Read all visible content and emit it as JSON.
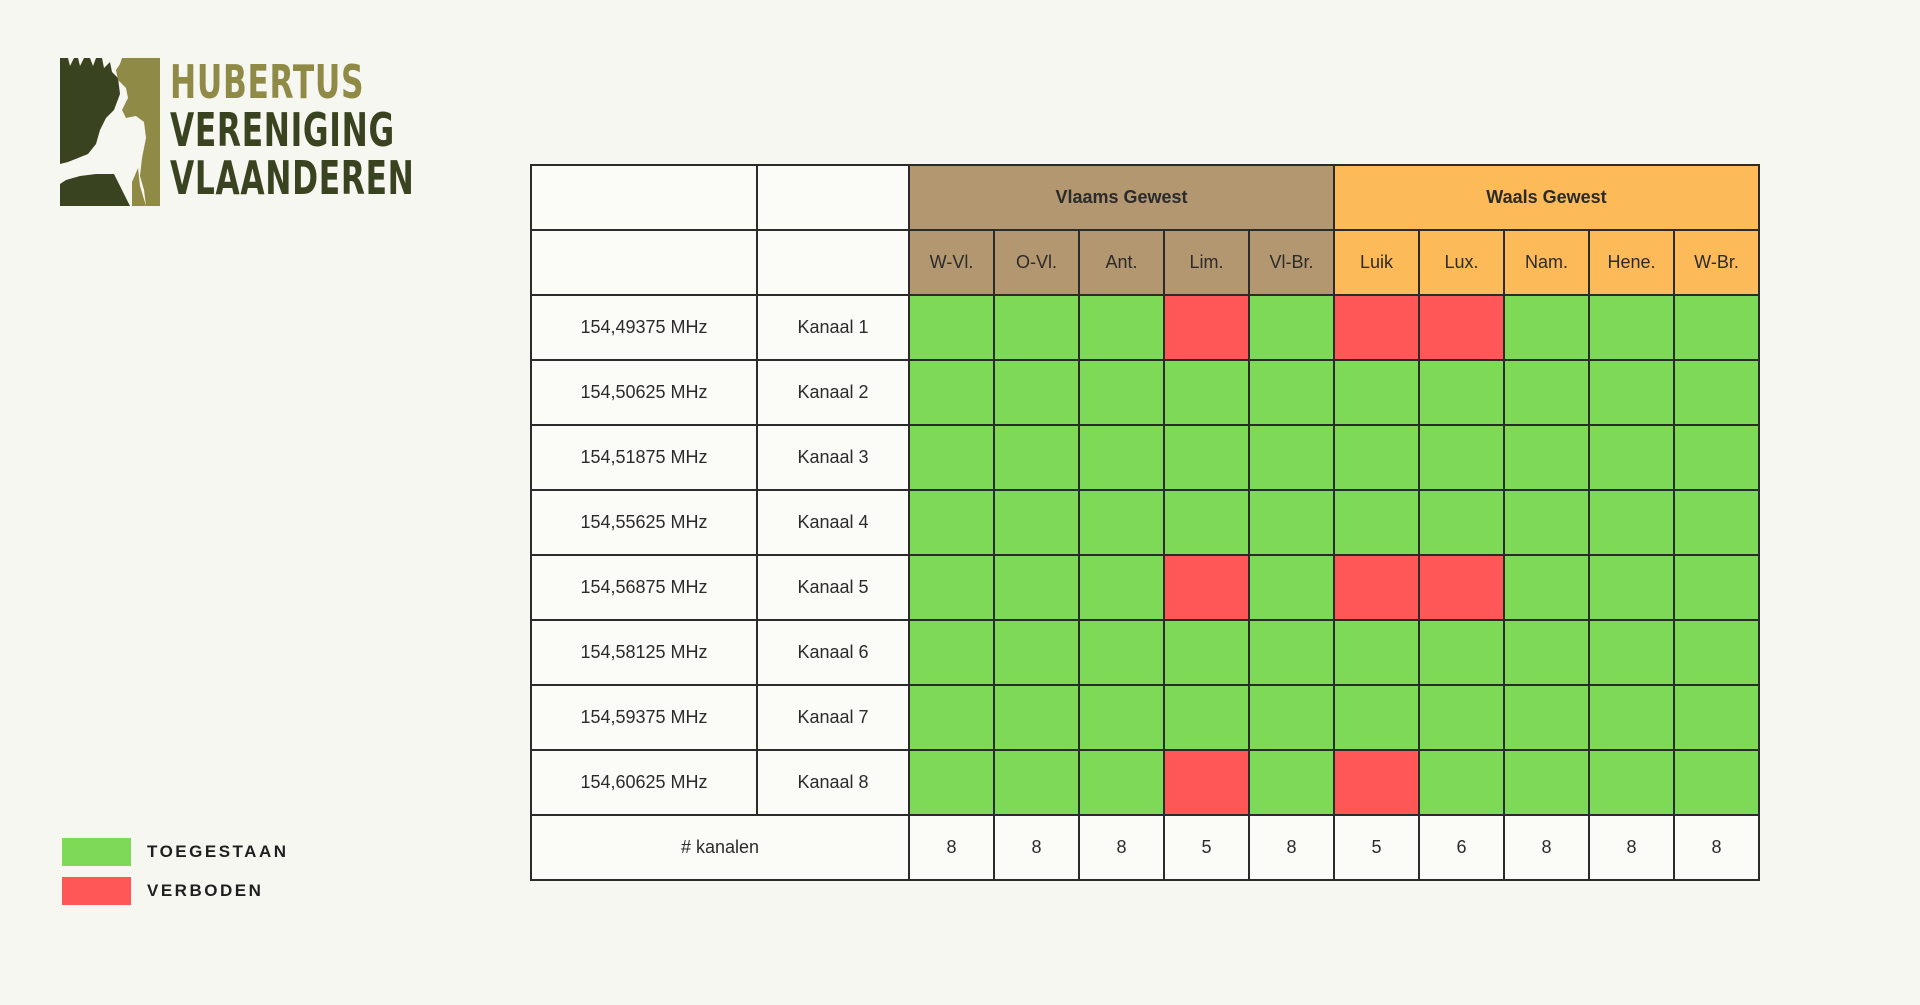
{
  "logo": {
    "line1": "HUBERTUS",
    "line2": "VERENIGING",
    "line3": "VLAANDEREN",
    "colors": {
      "olive": "#8f8a46",
      "dark": "#3a4320"
    }
  },
  "legend": {
    "allowed_label": "TOEGESTAAN",
    "forbidden_label": "VERBODEN"
  },
  "colors": {
    "allowed": "#7ed957",
    "forbidden": "#ff5757",
    "vlaams_header": "#b39770",
    "waals_header": "#fcbb58"
  },
  "chart_data": {
    "type": "table",
    "groups": [
      {
        "name": "Vlaams Gewest",
        "regions": [
          "W-Vl.",
          "O-Vl.",
          "Ant.",
          "Lim.",
          "Vl-Br."
        ]
      },
      {
        "name": "Waals Gewest",
        "regions": [
          "Luik",
          "Lux.",
          "Nam.",
          "Hene.",
          "W-Br."
        ]
      }
    ],
    "regions": [
      "W-Vl.",
      "O-Vl.",
      "Ant.",
      "Lim.",
      "Vl-Br.",
      "Luik",
      "Lux.",
      "Nam.",
      "Hene.",
      "W-Br."
    ],
    "rows": [
      {
        "frequency": "154,49375 MHz",
        "channel": "Kanaal 1",
        "status": [
          "allowed",
          "allowed",
          "allowed",
          "forbidden",
          "allowed",
          "forbidden",
          "forbidden",
          "allowed",
          "allowed",
          "allowed"
        ]
      },
      {
        "frequency": "154,50625 MHz",
        "channel": "Kanaal 2",
        "status": [
          "allowed",
          "allowed",
          "allowed",
          "allowed",
          "allowed",
          "allowed",
          "allowed",
          "allowed",
          "allowed",
          "allowed"
        ]
      },
      {
        "frequency": "154,51875 MHz",
        "channel": "Kanaal 3",
        "status": [
          "allowed",
          "allowed",
          "allowed",
          "allowed",
          "allowed",
          "allowed",
          "allowed",
          "allowed",
          "allowed",
          "allowed"
        ]
      },
      {
        "frequency": "154,55625 MHz",
        "channel": "Kanaal 4",
        "status": [
          "allowed",
          "allowed",
          "allowed",
          "allowed",
          "allowed",
          "allowed",
          "allowed",
          "allowed",
          "allowed",
          "allowed"
        ]
      },
      {
        "frequency": "154,56875 MHz",
        "channel": "Kanaal 5",
        "status": [
          "allowed",
          "allowed",
          "allowed",
          "forbidden",
          "allowed",
          "forbidden",
          "forbidden",
          "allowed",
          "allowed",
          "allowed"
        ]
      },
      {
        "frequency": "154,58125 MHz",
        "channel": "Kanaal 6",
        "status": [
          "allowed",
          "allowed",
          "allowed",
          "allowed",
          "allowed",
          "allowed",
          "allowed",
          "allowed",
          "allowed",
          "allowed"
        ]
      },
      {
        "frequency": "154,59375 MHz",
        "channel": "Kanaal 7",
        "status": [
          "allowed",
          "allowed",
          "allowed",
          "allowed",
          "allowed",
          "allowed",
          "allowed",
          "allowed",
          "allowed",
          "allowed"
        ]
      },
      {
        "frequency": "154,60625 MHz",
        "channel": "Kanaal 8",
        "status": [
          "allowed",
          "allowed",
          "allowed",
          "forbidden",
          "allowed",
          "forbidden",
          "allowed",
          "allowed",
          "allowed",
          "allowed"
        ]
      }
    ],
    "totals_label": "# kanalen",
    "totals": [
      "8",
      "8",
      "8",
      "5",
      "8",
      "5",
      "6",
      "8",
      "8",
      "8"
    ]
  }
}
